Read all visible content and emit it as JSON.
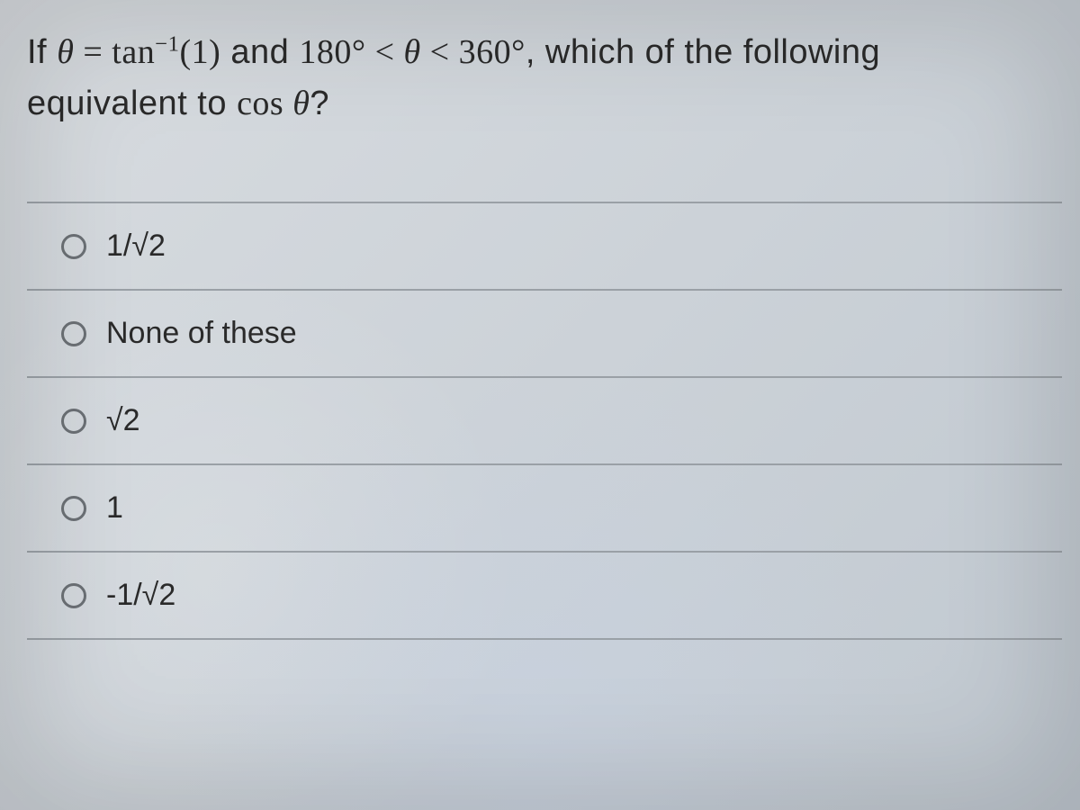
{
  "question": {
    "line1_prefix": "If ",
    "theta": "θ",
    "equals": " = ",
    "tan": "tan",
    "inv_sup": "−1",
    "tan_arg": "(1)",
    "and_text": " and ",
    "angle1": "180°",
    "lt1": " < ",
    "theta2": "θ",
    "lt2": " < ",
    "angle2": "360°",
    "which_text": ", which of the following",
    "line2_prefix": "equivalent to ",
    "cos": "cos ",
    "theta3": "θ",
    "qmark": "?"
  },
  "options": [
    {
      "label": "1/√2"
    },
    {
      "label": "None of these"
    },
    {
      "label": "√2"
    },
    {
      "label": "1"
    },
    {
      "label": "-1/√2"
    }
  ],
  "colors": {
    "text": "#2a2a2a",
    "border": "#9aa0a6",
    "radio_border": "#6b7075",
    "bg_top": "#d8dce0",
    "bg_bottom": "#c0c8d0"
  }
}
